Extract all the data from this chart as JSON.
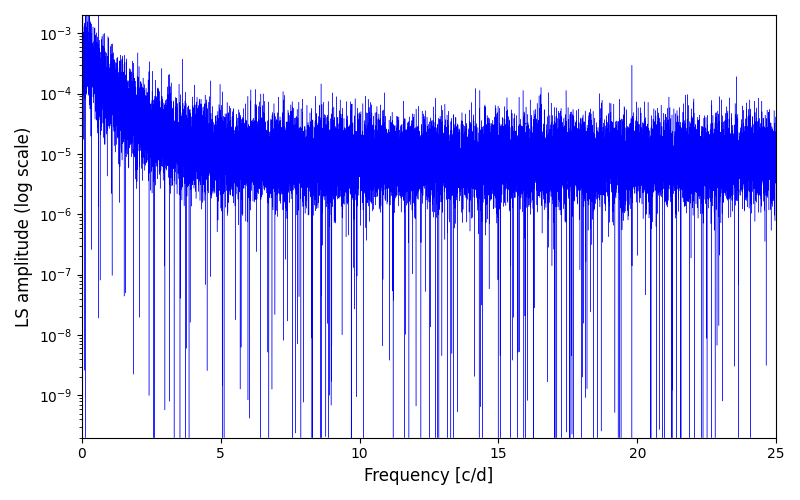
{
  "xlabel": "Frequency [c/d]",
  "ylabel": "LS amplitude (log scale)",
  "line_color": "#0000ff",
  "xlim": [
    0,
    25
  ],
  "ylim_log_min": -9.7,
  "ylim_log_max": -2.7,
  "n_points": 20000,
  "freq_max": 25.0,
  "seed": 42,
  "figsize": [
    8.0,
    5.0
  ],
  "dpi": 100,
  "background_color": "#ffffff",
  "xticks": [
    0,
    5,
    10,
    15,
    20,
    25
  ]
}
